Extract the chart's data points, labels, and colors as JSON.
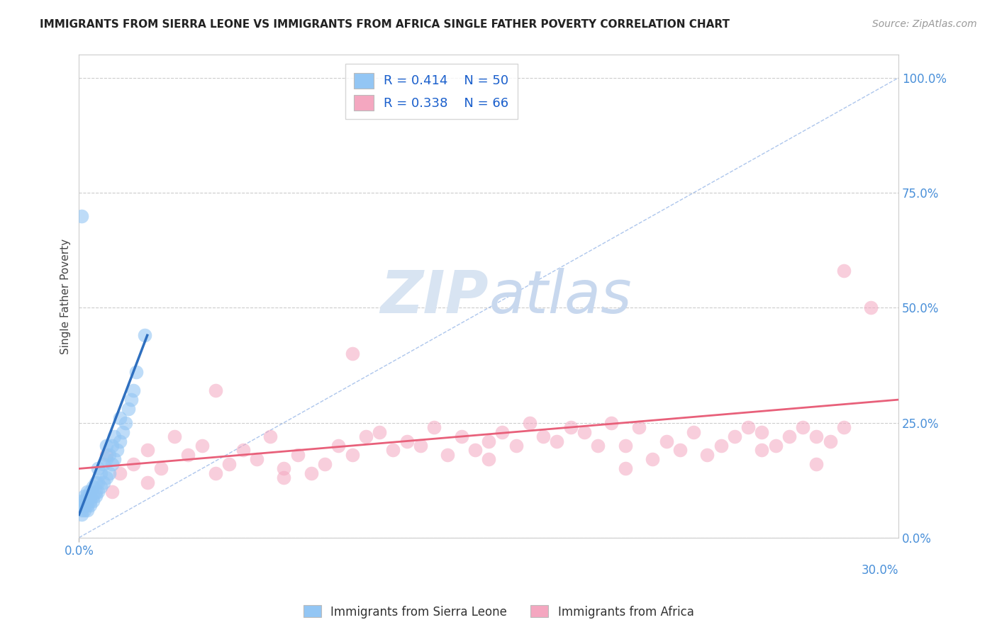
{
  "title": "IMMIGRANTS FROM SIERRA LEONE VS IMMIGRANTS FROM AFRICA SINGLE FATHER POVERTY CORRELATION CHART",
  "source": "Source: ZipAtlas.com",
  "ylabel": "Single Father Poverty",
  "yticks": [
    "0.0%",
    "25.0%",
    "50.0%",
    "75.0%",
    "100.0%"
  ],
  "ytick_vals": [
    0.0,
    0.25,
    0.5,
    0.75,
    1.0
  ],
  "xmin": 0.0,
  "xmax": 0.3,
  "ymin": 0.0,
  "ymax": 1.05,
  "blue_label": "Immigrants from Sierra Leone",
  "pink_label": "Immigrants from Africa",
  "blue_R": 0.414,
  "blue_N": 50,
  "pink_R": 0.338,
  "pink_N": 66,
  "blue_color": "#93C6F4",
  "pink_color": "#F4A7C0",
  "blue_line_color": "#2E6FBF",
  "pink_line_color": "#E8607A",
  "diag_color": "#99B8E8",
  "watermark_color": "#D8E4F2",
  "blue_scatter_x": [
    0.001,
    0.001,
    0.001,
    0.001,
    0.002,
    0.002,
    0.002,
    0.002,
    0.003,
    0.003,
    0.003,
    0.003,
    0.003,
    0.004,
    0.004,
    0.004,
    0.004,
    0.005,
    0.005,
    0.005,
    0.006,
    0.006,
    0.006,
    0.007,
    0.007,
    0.007,
    0.008,
    0.008,
    0.009,
    0.009,
    0.01,
    0.01,
    0.01,
    0.011,
    0.011,
    0.012,
    0.012,
    0.013,
    0.013,
    0.014,
    0.015,
    0.015,
    0.016,
    0.017,
    0.018,
    0.019,
    0.02,
    0.021,
    0.024,
    0.001
  ],
  "blue_scatter_y": [
    0.05,
    0.06,
    0.07,
    0.08,
    0.06,
    0.07,
    0.08,
    0.09,
    0.06,
    0.07,
    0.08,
    0.09,
    0.1,
    0.07,
    0.08,
    0.09,
    0.1,
    0.08,
    0.09,
    0.11,
    0.09,
    0.1,
    0.12,
    0.1,
    0.12,
    0.15,
    0.11,
    0.14,
    0.12,
    0.16,
    0.13,
    0.17,
    0.2,
    0.14,
    0.18,
    0.16,
    0.2,
    0.17,
    0.22,
    0.19,
    0.21,
    0.26,
    0.23,
    0.25,
    0.28,
    0.3,
    0.32,
    0.36,
    0.44,
    0.7
  ],
  "pink_scatter_x": [
    0.01,
    0.015,
    0.02,
    0.025,
    0.03,
    0.035,
    0.04,
    0.045,
    0.05,
    0.055,
    0.06,
    0.065,
    0.07,
    0.075,
    0.08,
    0.085,
    0.09,
    0.095,
    0.1,
    0.105,
    0.11,
    0.115,
    0.12,
    0.125,
    0.13,
    0.135,
    0.14,
    0.145,
    0.15,
    0.155,
    0.16,
    0.165,
    0.17,
    0.175,
    0.18,
    0.185,
    0.19,
    0.195,
    0.2,
    0.205,
    0.21,
    0.215,
    0.22,
    0.225,
    0.23,
    0.235,
    0.24,
    0.245,
    0.25,
    0.255,
    0.26,
    0.265,
    0.27,
    0.275,
    0.28,
    0.012,
    0.025,
    0.05,
    0.075,
    0.1,
    0.15,
    0.2,
    0.25,
    0.27,
    0.28,
    0.29
  ],
  "pink_scatter_y": [
    0.18,
    0.14,
    0.16,
    0.19,
    0.15,
    0.22,
    0.18,
    0.2,
    0.32,
    0.16,
    0.19,
    0.17,
    0.22,
    0.15,
    0.18,
    0.14,
    0.16,
    0.2,
    0.4,
    0.22,
    0.23,
    0.19,
    0.21,
    0.2,
    0.24,
    0.18,
    0.22,
    0.19,
    0.21,
    0.23,
    0.2,
    0.25,
    0.22,
    0.21,
    0.24,
    0.23,
    0.2,
    0.25,
    0.2,
    0.24,
    0.17,
    0.21,
    0.19,
    0.23,
    0.18,
    0.2,
    0.22,
    0.24,
    0.23,
    0.2,
    0.22,
    0.24,
    0.16,
    0.21,
    0.24,
    0.1,
    0.12,
    0.14,
    0.13,
    0.18,
    0.17,
    0.15,
    0.19,
    0.22,
    0.58,
    0.5
  ],
  "blue_line_x": [
    0.0,
    0.025
  ],
  "blue_line_y": [
    0.05,
    0.44
  ],
  "pink_line_x": [
    0.0,
    0.3
  ],
  "pink_line_y": [
    0.15,
    0.3
  ]
}
